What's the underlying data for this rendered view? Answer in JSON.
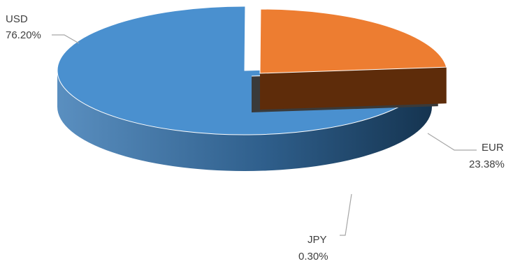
{
  "chart_data": {
    "type": "pie",
    "title": "",
    "style": "3d-exploded",
    "legend": "none",
    "categories": [
      "USD",
      "EUR",
      "JPY"
    ],
    "values": [
      76.2,
      23.38,
      0.3
    ],
    "value_labels": [
      "76.20%",
      "23.38%",
      "0.30%"
    ],
    "unit": "%",
    "colors": {
      "USD": "#4a90cf",
      "EUR": "#ed7d31",
      "JPY": "#3a3a3a"
    }
  }
}
